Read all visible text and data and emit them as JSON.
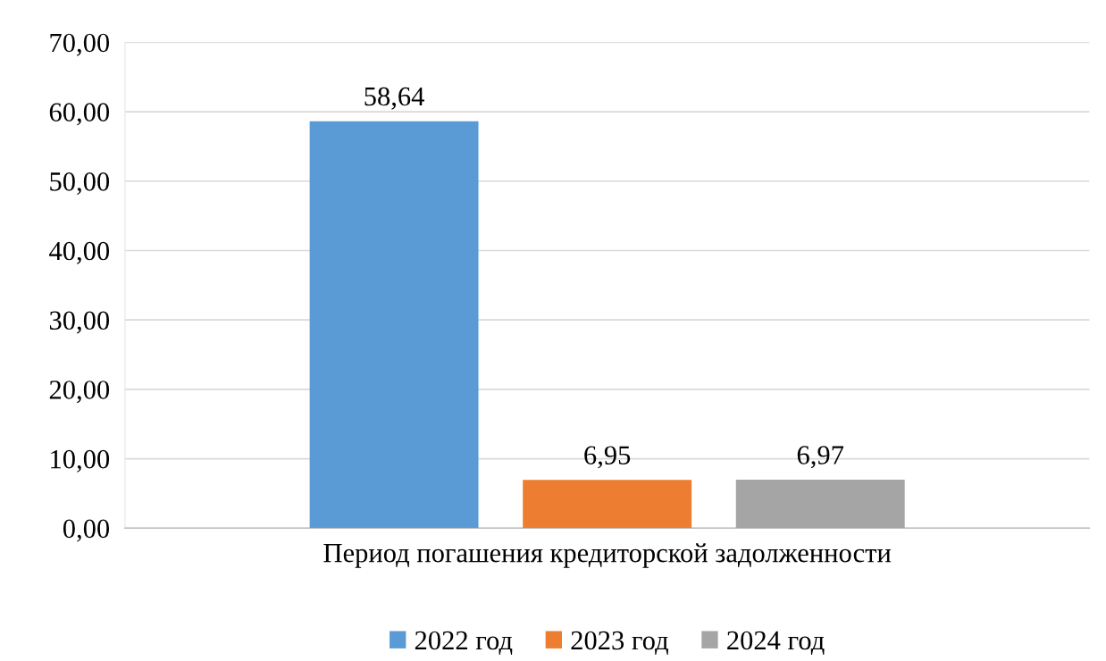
{
  "chart_data": {
    "type": "bar",
    "categories": [
      "Период погашения кредиторской задолженности"
    ],
    "series": [
      {
        "name": "2022 год",
        "color": "#5b9bd5",
        "values": [
          58.64
        ],
        "value_labels": [
          "58,64"
        ]
      },
      {
        "name": "2023 год",
        "color": "#ed7d31",
        "values": [
          6.95
        ],
        "value_labels": [
          "6,95"
        ]
      },
      {
        "name": "2024 год",
        "color": "#a5a5a5",
        "values": [
          6.97
        ],
        "value_labels": [
          "6,97"
        ]
      }
    ],
    "ylim": [
      0,
      70
    ],
    "yticks": [
      {
        "value": 0,
        "label": "0,00"
      },
      {
        "value": 10,
        "label": "10,00"
      },
      {
        "value": 20,
        "label": "20,00"
      },
      {
        "value": 30,
        "label": "30,00"
      },
      {
        "value": 40,
        "label": "40,00"
      },
      {
        "value": 50,
        "label": "50,00"
      },
      {
        "value": 60,
        "label": "60,00"
      },
      {
        "value": 70,
        "label": "70,00"
      }
    ],
    "grid": "y",
    "legend": "bottom"
  }
}
